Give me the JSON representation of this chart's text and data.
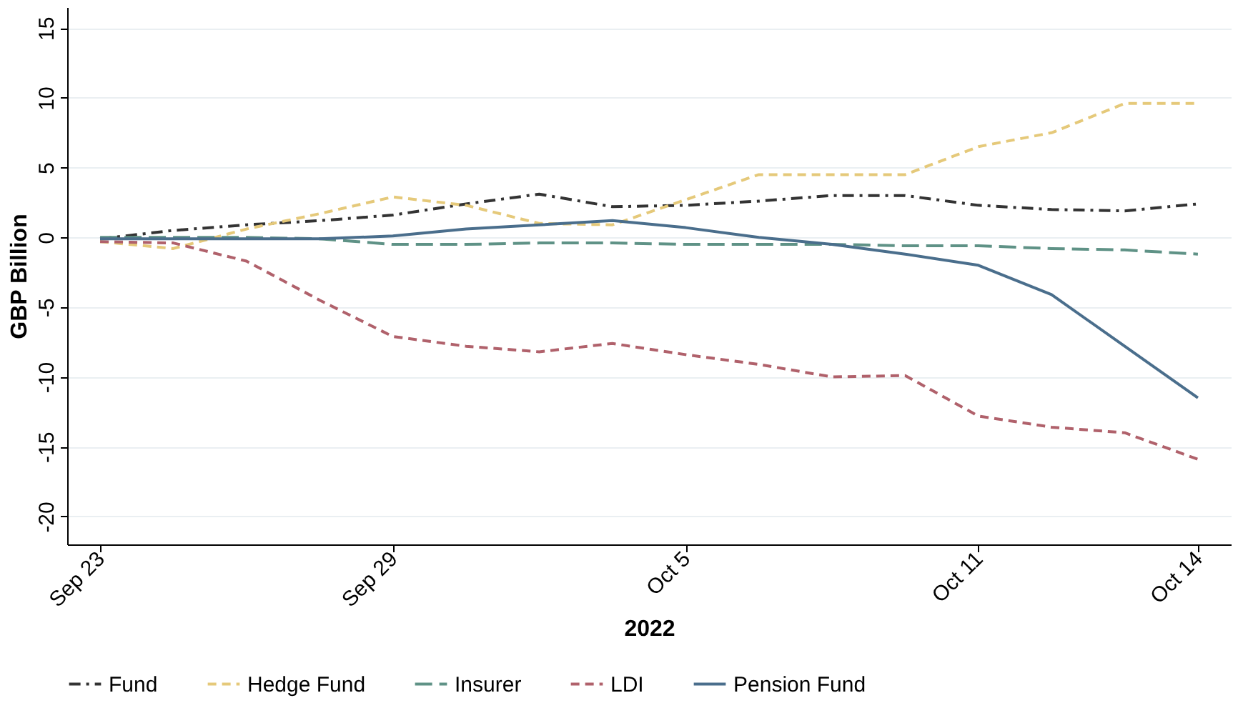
{
  "chart_data": {
    "type": "line",
    "xlabel": "2022",
    "ylabel": "GBP Billion",
    "categories": [
      "Sep 23",
      null,
      null,
      null,
      "Sep 29",
      null,
      null,
      null,
      "Oct 5",
      null,
      null,
      null,
      "Oct 11",
      null,
      null,
      "Oct 14"
    ],
    "ylim": [
      -22,
      16.5
    ],
    "yticks": [
      -20,
      -15,
      -10,
      -5,
      0,
      5,
      10,
      15
    ],
    "grid": "y",
    "legend": "bottom",
    "series": [
      {
        "name": "Fund",
        "color": "#333333",
        "line_style": "dashdot",
        "values": [
          -0.1,
          0.5,
          0.9,
          1.2,
          1.6,
          2.4,
          3.1,
          2.2,
          2.3,
          2.6,
          3.0,
          3.0,
          2.3,
          2.0,
          1.9,
          2.4
        ]
      },
      {
        "name": "Hedge Fund",
        "color": "#e5c97a",
        "line_style": "dashed",
        "values": [
          -0.3,
          -0.8,
          0.6,
          1.7,
          2.9,
          2.3,
          1.0,
          0.9,
          2.7,
          4.5,
          4.5,
          4.5,
          6.5,
          7.5,
          9.6,
          9.6
        ]
      },
      {
        "name": "Insurer",
        "color": "#5f9286",
        "line_style": "longdash",
        "values": [
          0,
          0,
          0,
          -0.1,
          -0.5,
          -0.5,
          -0.4,
          -0.4,
          -0.5,
          -0.5,
          -0.5,
          -0.6,
          -0.6,
          -0.8,
          -0.9,
          -1.2
        ]
      },
      {
        "name": "LDI",
        "color": "#b0616b",
        "line_style": "dashed",
        "values": [
          -0.3,
          -0.4,
          -1.7,
          -4.5,
          -7.1,
          -7.8,
          -8.2,
          -7.6,
          -8.4,
          -9.1,
          -10.0,
          -9.9,
          -12.8,
          -13.6,
          -14.0,
          -15.9
        ]
      },
      {
        "name": "Pension Fund",
        "color": "#4a6e8c",
        "line_style": "solid",
        "values": [
          -0.1,
          -0.1,
          -0.1,
          -0.1,
          0.1,
          0.6,
          0.9,
          1.2,
          0.7,
          0.0,
          -0.5,
          -1.2,
          -2.0,
          -4.1,
          -7.8,
          -11.5
        ]
      }
    ]
  }
}
